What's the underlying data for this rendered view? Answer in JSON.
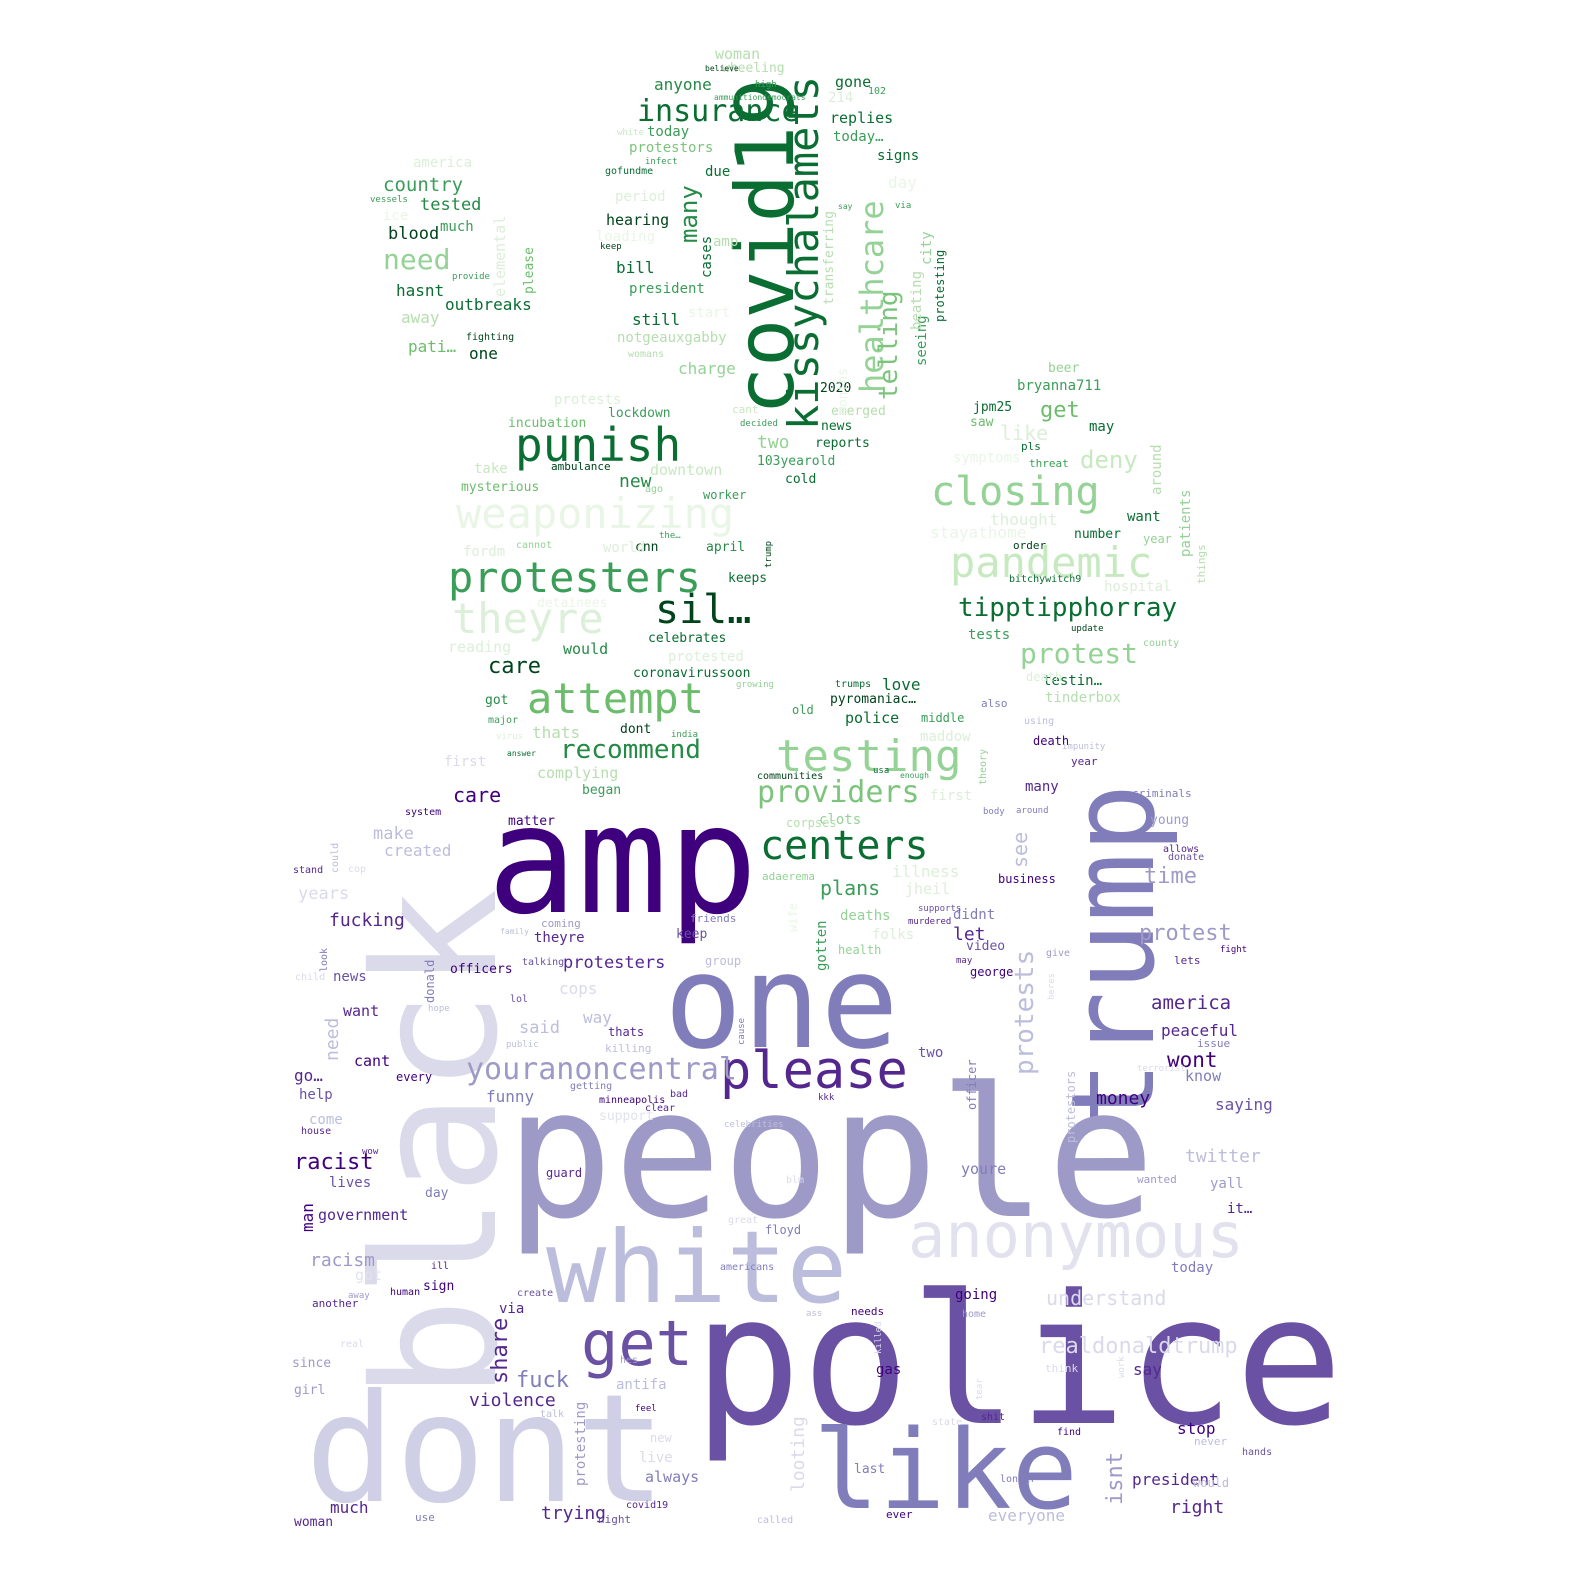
{
  "green": [
    {
      "t": "covid19",
      "c": "#0a6d32"
    },
    {
      "t": "kissychalamets",
      "c": "#0a6d32"
    },
    {
      "t": "insurance",
      "c": "#0a6d32"
    },
    {
      "t": "healthcare",
      "c": "#94d295"
    },
    {
      "t": "telling",
      "c": "#7cc47c"
    },
    {
      "t": "punish",
      "c": "#0a6d32"
    },
    {
      "t": "weaponizing",
      "c": "#e9f6e6"
    },
    {
      "t": "protesters",
      "c": "#3a9d58"
    },
    {
      "t": "sil…",
      "c": "#00441b"
    },
    {
      "t": "theyre",
      "c": "#dcefd9"
    },
    {
      "t": "attempt",
      "c": "#6bbd6c"
    },
    {
      "t": "recommend",
      "c": "#248a45"
    },
    {
      "t": "testing",
      "c": "#94d295"
    },
    {
      "t": "providers",
      "c": "#7cc47c"
    },
    {
      "t": "centers",
      "c": "#0a6d32"
    },
    {
      "t": "closing",
      "c": "#94d295"
    },
    {
      "t": "pandemic",
      "c": "#c7e9c0"
    },
    {
      "t": "tipptipphorray",
      "c": "#0a6d32"
    },
    {
      "t": "protest",
      "c": "#94d295"
    },
    {
      "t": "need",
      "c": "#94d295"
    },
    {
      "t": "country",
      "c": "#3a9d58"
    },
    {
      "t": "tested",
      "c": "#248a45"
    },
    {
      "t": "blood",
      "c": "#00441b"
    },
    {
      "t": "hasnt",
      "c": "#0a6d32"
    },
    {
      "t": "outbreaks",
      "c": "#0a6d32"
    },
    {
      "t": "away",
      "c": "#b5deae"
    },
    {
      "t": "pati…",
      "c": "#6bbd6c"
    },
    {
      "t": "one",
      "c": "#00441b"
    },
    {
      "t": "much",
      "c": "#3a9d58"
    },
    {
      "t": "america",
      "c": "#dcefd9"
    },
    {
      "t": "many",
      "c": "#248a45"
    },
    {
      "t": "anyone",
      "c": "#248a45"
    },
    {
      "t": "woman",
      "c": "#b5deae"
    },
    {
      "t": "wheeling",
      "c": "#b5deae"
    },
    {
      "t": "today",
      "c": "#3a9d58"
    },
    {
      "t": "protestors",
      "c": "#7cc47c"
    },
    {
      "t": "due",
      "c": "#0a6d32"
    },
    {
      "t": "hearing",
      "c": "#00441b"
    },
    {
      "t": "bill",
      "c": "#0a6d32"
    },
    {
      "t": "president",
      "c": "#3a9d58"
    },
    {
      "t": "still",
      "c": "#0a6d32"
    },
    {
      "t": "notgeauxgabby",
      "c": "#b5deae"
    },
    {
      "t": "charge",
      "c": "#94d295"
    },
    {
      "t": "gone",
      "c": "#0a6d32"
    },
    {
      "t": "replies",
      "c": "#0a6d32"
    },
    {
      "t": "today…",
      "c": "#3a9d58"
    },
    {
      "t": "signs",
      "c": "#0a6d32"
    },
    {
      "t": "2020",
      "c": "#00441b"
    },
    {
      "t": "emerged",
      "c": "#b5deae"
    },
    {
      "t": "news",
      "c": "#0a6d32"
    },
    {
      "t": "reports",
      "c": "#0a6d32"
    },
    {
      "t": "two",
      "c": "#94d295"
    },
    {
      "t": "103yearold",
      "c": "#3a9d58"
    },
    {
      "t": "cold",
      "c": "#0a6d32"
    },
    {
      "t": "lockdown",
      "c": "#3a9d58"
    },
    {
      "t": "incubation",
      "c": "#6bbd6c"
    },
    {
      "t": "ambulance",
      "c": "#00441b"
    },
    {
      "t": "downtown",
      "c": "#c7e9c0"
    },
    {
      "t": "mysterious",
      "c": "#6bbd6c"
    },
    {
      "t": "new",
      "c": "#248a45"
    },
    {
      "t": "worker",
      "c": "#3a9d58"
    },
    {
      "t": "cnn",
      "c": "#00441b"
    },
    {
      "t": "april",
      "c": "#248a45"
    },
    {
      "t": "keeps",
      "c": "#0a6d32"
    },
    {
      "t": "celebrates",
      "c": "#0a6d32"
    },
    {
      "t": "would",
      "c": "#248a45"
    },
    {
      "t": "care",
      "c": "#00441b"
    },
    {
      "t": "coronavirussoon",
      "c": "#0a6d32"
    },
    {
      "t": "protested",
      "c": "#dcefd9"
    },
    {
      "t": "got",
      "c": "#248a45"
    },
    {
      "t": "thats",
      "c": "#b5deae"
    },
    {
      "t": "dont",
      "c": "#00441b"
    },
    {
      "t": "complying",
      "c": "#b5deae"
    },
    {
      "t": "began",
      "c": "#3a9d58"
    },
    {
      "t": "beer",
      "c": "#94d295"
    },
    {
      "t": "bryanna711",
      "c": "#3a9d58"
    },
    {
      "t": "get",
      "c": "#6bbd6c"
    },
    {
      "t": "jpm25",
      "c": "#0a6d32"
    },
    {
      "t": "saw",
      "c": "#6bbd6c"
    },
    {
      "t": "like",
      "c": "#dcefd9"
    },
    {
      "t": "may",
      "c": "#0a6d32"
    },
    {
      "t": "deny",
      "c": "#c7e9c0"
    },
    {
      "t": "want",
      "c": "#0a6d32"
    },
    {
      "t": "number",
      "c": "#0a6d32"
    },
    {
      "t": "thought",
      "c": "#dcefd9"
    },
    {
      "t": "stayathome",
      "c": "#e9f6e6"
    },
    {
      "t": "tests",
      "c": "#3a9d58"
    },
    {
      "t": "testin…",
      "c": "#0a6d32"
    },
    {
      "t": "tinderbox",
      "c": "#b5deae"
    },
    {
      "t": "love",
      "c": "#0a6d32"
    },
    {
      "t": "police",
      "c": "#0a6d32"
    },
    {
      "t": "middle",
      "c": "#3a9d58"
    },
    {
      "t": "maddow",
      "c": "#dcefd9"
    },
    {
      "t": "pyromaniac…",
      "c": "#00441b"
    },
    {
      "t": "trumps",
      "c": "#0a6d32"
    },
    {
      "t": "clots",
      "c": "#94d295"
    },
    {
      "t": "first",
      "c": "#dcefd9"
    },
    {
      "t": "adaerema",
      "c": "#94d295"
    },
    {
      "t": "plans",
      "c": "#3a9d58"
    },
    {
      "t": "illness",
      "c": "#dcefd9"
    },
    {
      "t": "jheil",
      "c": "#dcefd9"
    },
    {
      "t": "deaths",
      "c": "#94d295"
    },
    {
      "t": "folks",
      "c": "#dcefd9"
    },
    {
      "t": "gotten",
      "c": "#3a9d58"
    },
    {
      "t": "corpses",
      "c": "#b5deae"
    },
    {
      "t": "communities",
      "c": "#00441b"
    },
    {
      "t": "health",
      "c": "#94d295"
    },
    {
      "t": "wife",
      "c": "#e9f6e6"
    },
    {
      "t": "seeing",
      "c": "#3a9d58"
    },
    {
      "t": "beating",
      "c": "#b5deae"
    },
    {
      "t": "city",
      "c": "#94d295"
    },
    {
      "t": "protesting",
      "c": "#0a6d32"
    },
    {
      "t": "please",
      "c": "#6bbd6c"
    },
    {
      "t": "elemental",
      "c": "#dcefd9"
    },
    {
      "t": "cases",
      "c": "#0a6d32"
    },
    {
      "t": "transferring",
      "c": "#b5deae"
    },
    {
      "t": "around",
      "c": "#b5deae"
    },
    {
      "t": "patients",
      "c": "#94d295"
    },
    {
      "t": "things",
      "c": "#b5deae"
    },
    {
      "t": "hospital",
      "c": "#dcefd9"
    },
    {
      "t": "county",
      "c": "#94d295"
    },
    {
      "t": "death",
      "c": "#dcefd9"
    },
    {
      "t": "ago",
      "c": "#94d295"
    },
    {
      "t": "fighting",
      "c": "#00441b"
    },
    {
      "t": "period",
      "c": "#dcefd9"
    },
    {
      "t": "start",
      "c": "#e9f6e6"
    },
    {
      "t": "day",
      "c": "#e9f6e6"
    },
    {
      "t": "symptoms",
      "c": "#e9f6e6"
    },
    {
      "t": "world",
      "c": "#dcefd9"
    },
    {
      "t": "fordm",
      "c": "#dcefd9"
    },
    {
      "t": "detainees",
      "c": "#e9f6e6"
    },
    {
      "t": "reading",
      "c": "#dcefd9"
    },
    {
      "t": "protests",
      "c": "#dcefd9"
    },
    {
      "t": "take",
      "c": "#c7e9c0"
    },
    {
      "t": "year",
      "c": "#94d295"
    },
    {
      "t": "order",
      "c": "#00441b"
    },
    {
      "t": "bitchywitch9",
      "c": "#0a6d32"
    },
    {
      "t": "update",
      "c": "#00441b"
    },
    {
      "t": "threat",
      "c": "#3a9d58"
    },
    {
      "t": "pls",
      "c": "#0a6d32"
    },
    {
      "t": "ice",
      "c": "#e9f6e6"
    },
    {
      "t": "gofundme",
      "c": "#0a6d32"
    },
    {
      "t": "infect",
      "c": "#3a9d58"
    },
    {
      "t": "vessels",
      "c": "#3a9d58"
    },
    {
      "t": "white",
      "c": "#c7e9c0"
    },
    {
      "t": "keep",
      "c": "#00441b"
    },
    {
      "t": "provide",
      "c": "#3a9d58"
    },
    {
      "t": "believe",
      "c": "#00441b"
    },
    {
      "t": "high",
      "c": "#3a9d58"
    },
    {
      "t": "ammunitiondemocrats",
      "c": "#3a9d58"
    },
    {
      "t": "102",
      "c": "#3a9d58"
    },
    {
      "t": "214",
      "c": "#dcefd9"
    },
    {
      "t": "say",
      "c": "#3a9d58"
    },
    {
      "t": "via",
      "c": "#3a9d58"
    },
    {
      "t": "cant",
      "c": "#c7e9c0"
    },
    {
      "t": "decided",
      "c": "#3a9d58"
    },
    {
      "t": "trump",
      "c": "#00441b"
    },
    {
      "t": "the…",
      "c": "#3a9d58"
    },
    {
      "t": "cannot",
      "c": "#94d295"
    },
    {
      "t": "major",
      "c": "#3a9d58"
    },
    {
      "t": "virus",
      "c": "#dcefd9"
    },
    {
      "t": "answer",
      "c": "#0a6d32"
    },
    {
      "t": "india",
      "c": "#3a9d58"
    },
    {
      "t": "growing",
      "c": "#94d295"
    },
    {
      "t": "old",
      "c": "#3a9d58"
    },
    {
      "t": "usa",
      "c": "#0a6d32"
    },
    {
      "t": "enough",
      "c": "#3a9d58"
    },
    {
      "t": "theory",
      "c": "#94d295"
    },
    {
      "t": "womans",
      "c": "#b5deae"
    },
    {
      "t": "amp",
      "c": "#b5deae"
    },
    {
      "t": "loading",
      "c": "#e9f6e6"
    },
    {
      "t": "months",
      "c": "#e9f6e6"
    }
  ],
  "purple": [
    {
      "t": "amp",
      "c": "#3f007d"
    },
    {
      "t": "black",
      "c": "#dadaeb"
    },
    {
      "t": "one",
      "c": "#807dba"
    },
    {
      "t": "trump",
      "c": "#807dba"
    },
    {
      "t": "people",
      "c": "#9e9ac8"
    },
    {
      "t": "white",
      "c": "#bcbddc"
    },
    {
      "t": "anonymous",
      "c": "#e2e2ef"
    },
    {
      "t": "please",
      "c": "#54278f"
    },
    {
      "t": "police",
      "c": "#6a51a3"
    },
    {
      "t": "dont",
      "c": "#cfcfe5"
    },
    {
      "t": "like",
      "c": "#807dba"
    },
    {
      "t": "get",
      "c": "#6a51a3"
    },
    {
      "t": "youranoncentral",
      "c": "#9e9ac8"
    },
    {
      "t": "protests",
      "c": "#bcbddc"
    },
    {
      "t": "see",
      "c": "#bcbddc"
    },
    {
      "t": "time",
      "c": "#9e9ac8"
    },
    {
      "t": "protest",
      "c": "#9e9ac8"
    },
    {
      "t": "america",
      "c": "#54278f"
    },
    {
      "t": "peaceful",
      "c": "#54278f"
    },
    {
      "t": "wont",
      "c": "#3f007d"
    },
    {
      "t": "know",
      "c": "#807dba"
    },
    {
      "t": "saying",
      "c": "#6a51a3"
    },
    {
      "t": "money",
      "c": "#3f007d"
    },
    {
      "t": "twitter",
      "c": "#bcbddc"
    },
    {
      "t": "yall",
      "c": "#9e9ac8"
    },
    {
      "t": "it…",
      "c": "#54278f"
    },
    {
      "t": "today",
      "c": "#807dba"
    },
    {
      "t": "understand",
      "c": "#dadaeb"
    },
    {
      "t": "realdonaldtrump",
      "c": "#dadaeb"
    },
    {
      "t": "say",
      "c": "#54278f"
    },
    {
      "t": "stop",
      "c": "#3f007d"
    },
    {
      "t": "never",
      "c": "#bcbddc"
    },
    {
      "t": "president",
      "c": "#54278f"
    },
    {
      "t": "isnt",
      "c": "#9e9ac8"
    },
    {
      "t": "right",
      "c": "#54278f"
    },
    {
      "t": "would",
      "c": "#bcbddc"
    },
    {
      "t": "everyone",
      "c": "#bcbddc"
    },
    {
      "t": "looting",
      "c": "#dadaeb"
    },
    {
      "t": "last",
      "c": "#807dba"
    },
    {
      "t": "ever",
      "c": "#3f007d"
    },
    {
      "t": "care",
      "c": "#3f007d"
    },
    {
      "t": "make",
      "c": "#bcbddc"
    },
    {
      "t": "created",
      "c": "#bcbddc"
    },
    {
      "t": "years",
      "c": "#dadaeb"
    },
    {
      "t": "fucking",
      "c": "#54278f"
    },
    {
      "t": "need",
      "c": "#bcbddc"
    },
    {
      "t": "want",
      "c": "#54278f"
    },
    {
      "t": "cant",
      "c": "#3f007d"
    },
    {
      "t": "every",
      "c": "#3f007d"
    },
    {
      "t": "go…",
      "c": "#54278f"
    },
    {
      "t": "help",
      "c": "#6a51a3"
    },
    {
      "t": "come",
      "c": "#bcbddc"
    },
    {
      "t": "house",
      "c": "#54278f"
    },
    {
      "t": "racist",
      "c": "#3f007d"
    },
    {
      "t": "man",
      "c": "#3f007d"
    },
    {
      "t": "lives",
      "c": "#6a51a3"
    },
    {
      "t": "government",
      "c": "#54278f"
    },
    {
      "t": "racism",
      "c": "#9e9ac8"
    },
    {
      "t": "got",
      "c": "#e2e2ef"
    },
    {
      "t": "another",
      "c": "#54278f"
    },
    {
      "t": "since",
      "c": "#9e9ac8"
    },
    {
      "t": "girl",
      "c": "#9e9ac8"
    },
    {
      "t": "much",
      "c": "#54278f"
    },
    {
      "t": "woman",
      "c": "#54278f"
    },
    {
      "t": "first",
      "c": "#dadaeb"
    },
    {
      "t": "system",
      "c": "#3f007d"
    },
    {
      "t": "matter",
      "c": "#3f007d"
    },
    {
      "t": "stand",
      "c": "#54278f"
    },
    {
      "t": "news",
      "c": "#6a51a3"
    },
    {
      "t": "theyre",
      "c": "#54278f"
    },
    {
      "t": "protesters",
      "c": "#54278f"
    },
    {
      "t": "cops",
      "c": "#dadaeb"
    },
    {
      "t": "way",
      "c": "#bcbddc"
    },
    {
      "t": "said",
      "c": "#bcbddc"
    },
    {
      "t": "thats",
      "c": "#54278f"
    },
    {
      "t": "killing",
      "c": "#bcbddc"
    },
    {
      "t": "funny",
      "c": "#807dba"
    },
    {
      "t": "support",
      "c": "#e2e2ef"
    },
    {
      "t": "share",
      "c": "#54278f"
    },
    {
      "t": "fuck",
      "c": "#807dba"
    },
    {
      "t": "antifa",
      "c": "#bcbddc"
    },
    {
      "t": "violence",
      "c": "#54278f"
    },
    {
      "t": "live",
      "c": "#dadaeb"
    },
    {
      "t": "always",
      "c": "#807dba"
    },
    {
      "t": "protesting",
      "c": "#9e9ac8"
    },
    {
      "t": "trying",
      "c": "#54278f"
    },
    {
      "t": "night",
      "c": "#6a51a3"
    },
    {
      "t": "via",
      "c": "#54278f"
    },
    {
      "t": "let",
      "c": "#54278f"
    },
    {
      "t": "didnt",
      "c": "#807dba"
    },
    {
      "t": "video",
      "c": "#6a51a3"
    },
    {
      "t": "george",
      "c": "#3f007d"
    },
    {
      "t": "two",
      "c": "#6a51a3"
    },
    {
      "t": "youre",
      "c": "#807dba"
    },
    {
      "t": "going",
      "c": "#3f007d"
    },
    {
      "t": "many",
      "c": "#54278f"
    },
    {
      "t": "criminals",
      "c": "#807dba"
    },
    {
      "t": "young",
      "c": "#9e9ac8"
    },
    {
      "t": "allows",
      "c": "#54278f"
    },
    {
      "t": "donate",
      "c": "#6a51a3"
    },
    {
      "t": "lets",
      "c": "#54278f"
    },
    {
      "t": "fight",
      "c": "#3f007d"
    },
    {
      "t": "give",
      "c": "#9e9ac8"
    },
    {
      "t": "business",
      "c": "#3f007d"
    },
    {
      "t": "around",
      "c": "#807dba"
    },
    {
      "t": "death",
      "c": "#3f007d"
    },
    {
      "t": "impunity",
      "c": "#bcbddc"
    },
    {
      "t": "year",
      "c": "#54278f"
    },
    {
      "t": "using",
      "c": "#bcbddc"
    },
    {
      "t": "also",
      "c": "#807dba"
    },
    {
      "t": "talking",
      "c": "#6a51a3"
    },
    {
      "t": "lol",
      "c": "#6a51a3"
    },
    {
      "t": "guard",
      "c": "#54278f"
    },
    {
      "t": "day",
      "c": "#807dba"
    },
    {
      "t": "floyd",
      "c": "#807dba"
    },
    {
      "t": "americans",
      "c": "#807dba"
    },
    {
      "t": "ill",
      "c": "#54278f"
    },
    {
      "t": "sign",
      "c": "#3f007d"
    },
    {
      "t": "create",
      "c": "#6a51a3"
    },
    {
      "t": "needs",
      "c": "#3f007d"
    },
    {
      "t": "gas",
      "c": "#3f007d"
    },
    {
      "t": "think",
      "c": "#dadaeb"
    },
    {
      "t": "hes",
      "c": "#9e9ac8"
    },
    {
      "t": "shit",
      "c": "#54278f"
    },
    {
      "t": "find",
      "c": "#3f007d"
    },
    {
      "t": "hands",
      "c": "#6a51a3"
    },
    {
      "t": "feel",
      "c": "#3f007d"
    },
    {
      "t": "covid19",
      "c": "#54278f"
    },
    {
      "t": "use",
      "c": "#807dba"
    },
    {
      "t": "called",
      "c": "#bcbddc"
    },
    {
      "t": "bad",
      "c": "#54278f"
    },
    {
      "t": "clear",
      "c": "#54278f"
    },
    {
      "t": "kkk",
      "c": "#54278f"
    },
    {
      "t": "minneapolis",
      "c": "#3f007d"
    },
    {
      "t": "getting",
      "c": "#807dba"
    },
    {
      "t": "celebrities",
      "c": "#bcbddc"
    },
    {
      "t": "wanted",
      "c": "#9e9ac8"
    },
    {
      "t": "officers",
      "c": "#3f007d"
    },
    {
      "t": "hope",
      "c": "#bcbddc"
    },
    {
      "t": "public",
      "c": "#bcbddc"
    },
    {
      "t": "coming",
      "c": "#9e9ac8"
    },
    {
      "t": "friends",
      "c": "#807dba"
    },
    {
      "t": "keep",
      "c": "#6a51a3"
    },
    {
      "t": "group",
      "c": "#bcbddc"
    },
    {
      "t": "family",
      "c": "#bcbddc"
    },
    {
      "t": "donald",
      "c": "#807dba"
    },
    {
      "t": "cause",
      "c": "#807dba"
    },
    {
      "t": "officer",
      "c": "#807dba"
    },
    {
      "t": "protestors",
      "c": "#bcbddc"
    },
    {
      "t": "issue",
      "c": "#807dba"
    },
    {
      "t": "terrorist",
      "c": "#dadaeb"
    },
    {
      "t": "may",
      "c": "#54278f"
    },
    {
      "t": "murdered",
      "c": "#54278f"
    },
    {
      "t": "supports",
      "c": "#6a51a3"
    },
    {
      "t": "body",
      "c": "#807dba"
    },
    {
      "t": "wow",
      "c": "#54278f"
    },
    {
      "t": "away",
      "c": "#9e9ac8"
    },
    {
      "t": "human",
      "c": "#3f007d"
    },
    {
      "t": "ass",
      "c": "#bcbddc"
    },
    {
      "t": "home",
      "c": "#9e9ac8"
    },
    {
      "t": "work",
      "c": "#dadaeb"
    },
    {
      "t": "longer",
      "c": "#807dba"
    },
    {
      "t": "talk",
      "c": "#bcbddc"
    },
    {
      "t": "could",
      "c": "#bcbddc"
    },
    {
      "t": "look",
      "c": "#807dba"
    },
    {
      "t": "child",
      "c": "#dadaeb"
    },
    {
      "t": "cop",
      "c": "#dadaeb"
    },
    {
      "t": "great",
      "c": "#dadaeb"
    },
    {
      "t": "blm",
      "c": "#dadaeb"
    },
    {
      "t": "state",
      "c": "#dadaeb"
    },
    {
      "t": "real",
      "c": "#dadaeb"
    },
    {
      "t": "new",
      "c": "#dadaeb"
    },
    {
      "t": "tear",
      "c": "#dadaeb"
    },
    {
      "t": "heres",
      "c": "#dadaeb"
    },
    {
      "t": "killed",
      "c": "#dadaeb"
    },
    {
      "t": "telling",
      "c": "#807dba"
    }
  ]
}
